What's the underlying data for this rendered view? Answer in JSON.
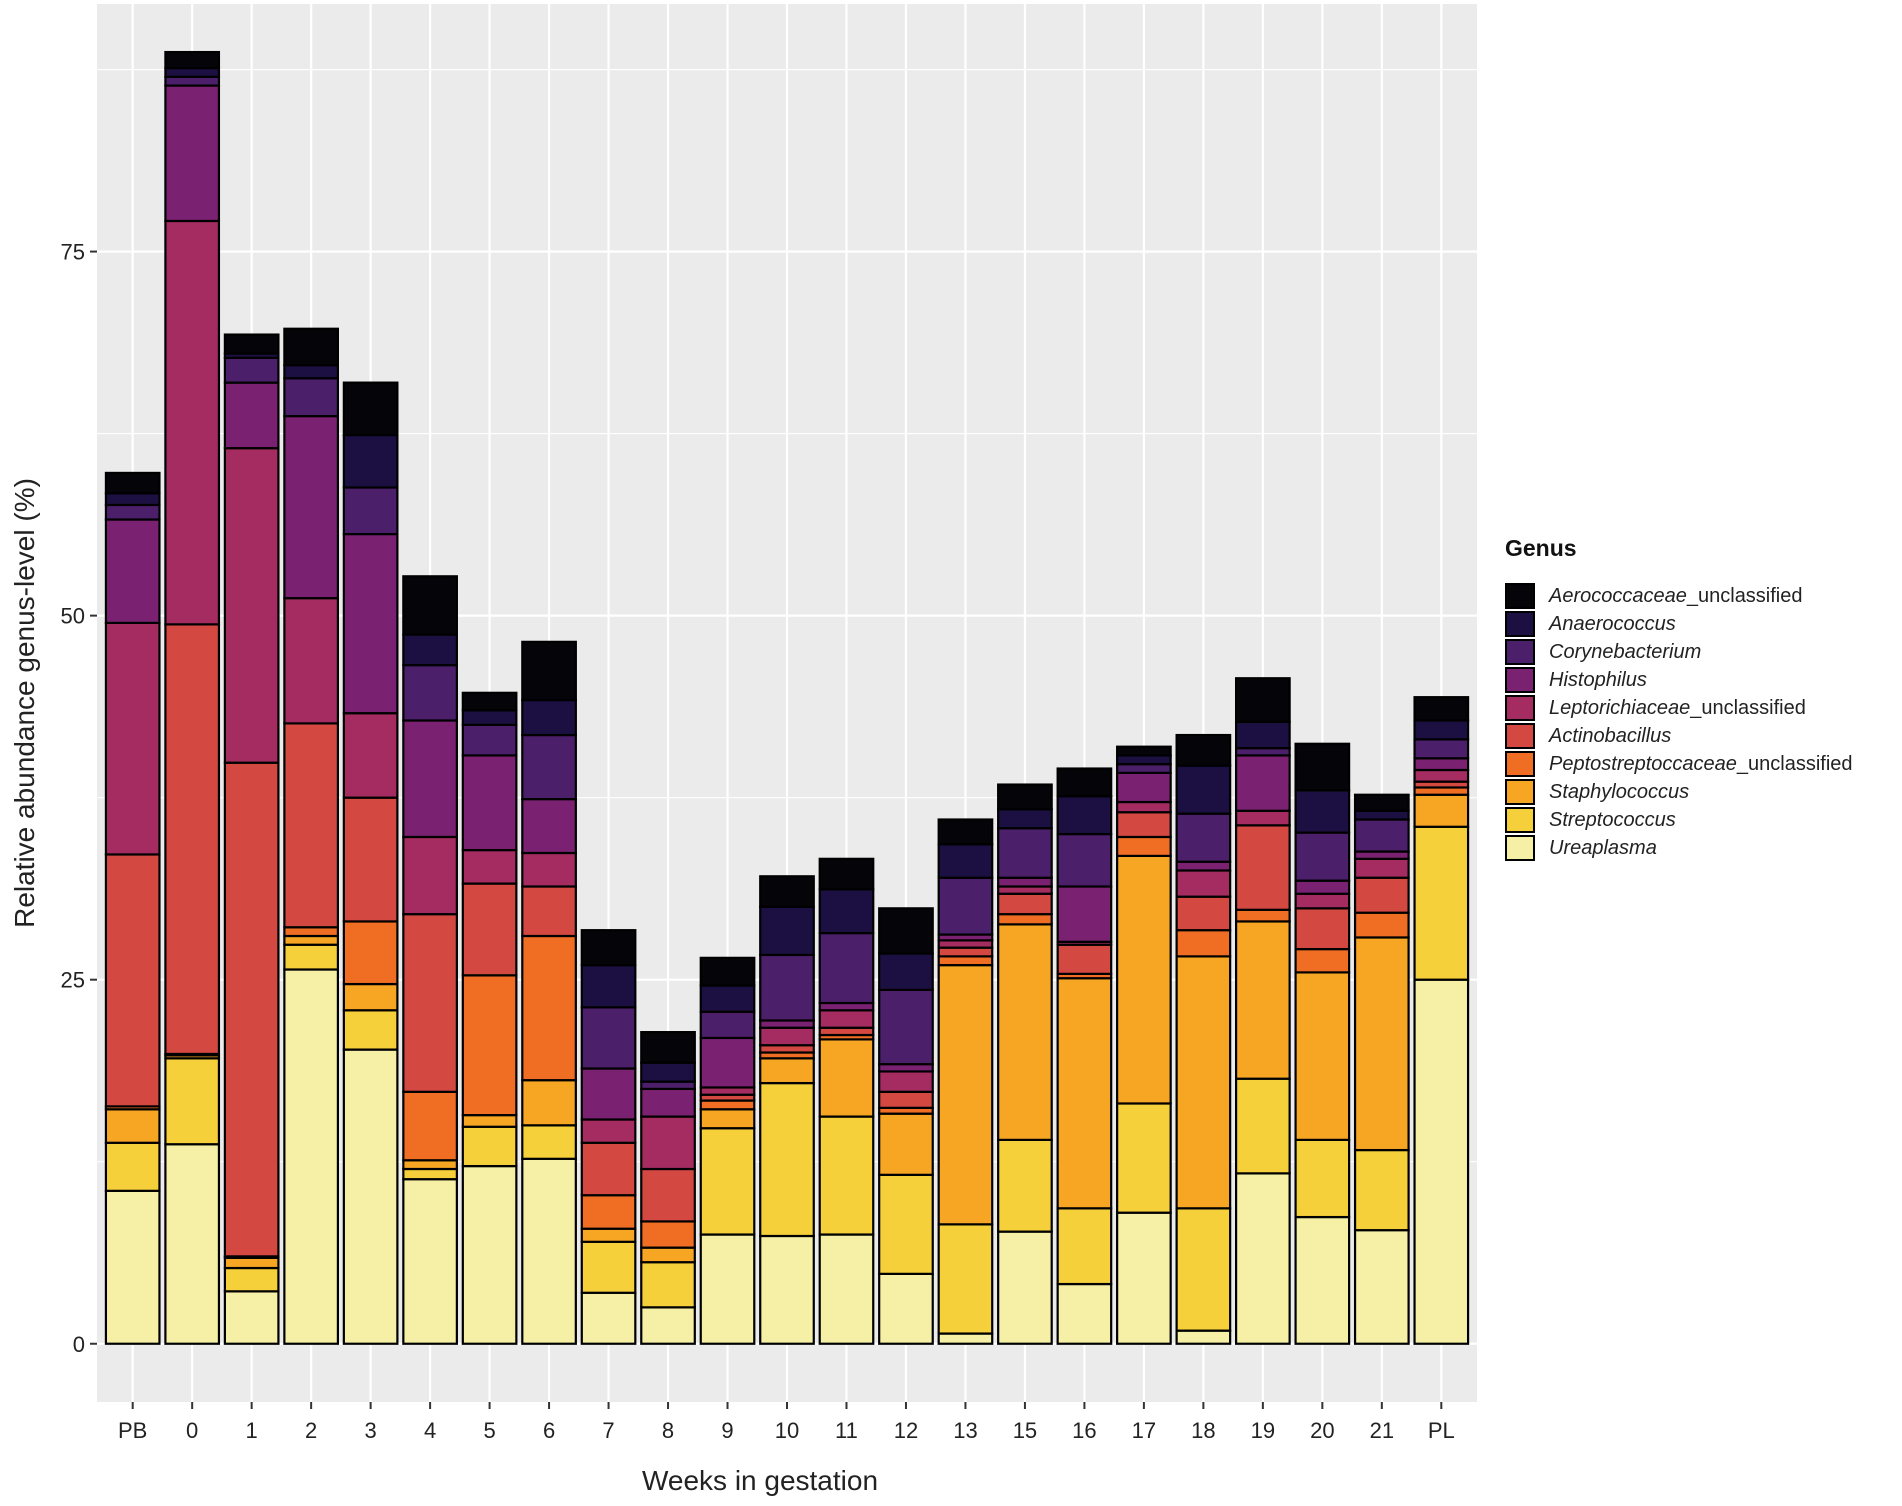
{
  "chart_data": {
    "type": "bar",
    "stacked": true,
    "xlabel": "Weeks in gestation",
    "ylabel": "Relative abundance genus-level (%)",
    "ylim": [
      -4,
      92
    ],
    "yticks": [
      "0",
      "25",
      "50",
      "75"
    ],
    "grid": true,
    "legend_title": "Genus",
    "legend_position": "right",
    "categories": [
      "PB",
      "0",
      "1",
      "2",
      "3",
      "4",
      "5",
      "6",
      "7",
      "8",
      "9",
      "10",
      "11",
      "12",
      "13",
      "15",
      "16",
      "17",
      "18",
      "19",
      "20",
      "21",
      "PL"
    ],
    "series": [
      {
        "name": "Ureaplasma",
        "italic": "Ureaplasma",
        "suffix": "",
        "color": "#f5f0a6",
        "values": [
          10.5,
          13.7,
          3.6,
          25.7,
          20.2,
          11.3,
          12.2,
          12.7,
          3.5,
          2.5,
          7.5,
          7.4,
          7.5,
          4.8,
          0.7,
          7.7,
          4.1,
          9.0,
          0.9,
          11.7,
          8.7,
          7.8,
          25.0
        ]
      },
      {
        "name": "Streptococcus",
        "italic": "Streptococcus",
        "suffix": "",
        "color": "#f6d03a",
        "values": [
          3.3,
          5.9,
          1.6,
          1.7,
          2.7,
          0.7,
          2.7,
          2.3,
          3.5,
          3.1,
          7.3,
          10.5,
          8.1,
          6.8,
          7.5,
          6.3,
          5.2,
          7.5,
          8.4,
          6.5,
          5.3,
          5.5,
          10.5
        ]
      },
      {
        "name": "Staphylococcus",
        "italic": "Staphylococcus",
        "suffix": "",
        "color": "#f7a624",
        "values": [
          2.3,
          0.2,
          0.7,
          0.6,
          1.8,
          0.6,
          0.8,
          3.1,
          0.9,
          1.0,
          1.3,
          1.7,
          5.3,
          4.2,
          17.8,
          14.8,
          15.8,
          17.0,
          17.3,
          10.8,
          11.5,
          14.6,
          2.2
        ]
      },
      {
        "name": "Peptostreptoccaceae_unclassified",
        "italic": "Peptostreptoccaceae",
        "suffix": "_unclassified",
        "color": "#ef6e24",
        "values": [
          0.2,
          0.1,
          0.1,
          0.6,
          4.3,
          4.7,
          9.6,
          9.9,
          2.3,
          1.8,
          0.6,
          0.4,
          0.3,
          0.4,
          0.6,
          0.7,
          0.3,
          1.3,
          1.8,
          0.8,
          1.6,
          1.7,
          0.5
        ]
      },
      {
        "name": "Actinobacillus",
        "italic": "Actinobacillus",
        "suffix": "",
        "color": "#d44842",
        "values": [
          17.3,
          29.5,
          33.9,
          14.0,
          8.5,
          12.2,
          6.3,
          3.4,
          3.6,
          3.6,
          0.4,
          0.5,
          0.5,
          1.1,
          0.6,
          1.4,
          2.0,
          1.7,
          2.3,
          5.8,
          2.8,
          2.4,
          0.4
        ]
      },
      {
        "name": "Leptorichiaceae_unclassified",
        "italic": "Leptorichiaceae",
        "suffix": "_unclassified",
        "color": "#a52c60",
        "values": [
          15.9,
          27.7,
          21.6,
          8.6,
          5.8,
          5.3,
          2.3,
          2.3,
          1.6,
          3.6,
          0.5,
          1.2,
          1.2,
          1.4,
          0.5,
          0.5,
          0.2,
          0.7,
          1.8,
          1.0,
          1.0,
          1.3,
          0.8
        ]
      },
      {
        "name": "Histophilus",
        "italic": "Histophilus",
        "suffix": "",
        "color": "#7a2271",
        "values": [
          7.1,
          9.3,
          4.5,
          12.5,
          12.3,
          8.0,
          6.5,
          3.7,
          3.5,
          1.9,
          3.4,
          0.5,
          0.5,
          0.5,
          0.4,
          0.6,
          3.8,
          2.0,
          0.6,
          3.8,
          0.9,
          0.5,
          0.8
        ]
      },
      {
        "name": "Corynebacterium",
        "italic": "Corynebacterium",
        "suffix": "",
        "color": "#4c1f6b",
        "values": [
          1.0,
          0.6,
          1.7,
          2.6,
          3.2,
          3.8,
          2.1,
          4.4,
          4.2,
          0.5,
          1.8,
          4.5,
          4.8,
          5.1,
          3.9,
          3.4,
          3.6,
          0.6,
          3.3,
          0.5,
          3.3,
          2.2,
          1.3
        ]
      },
      {
        "name": "Anaerococcus",
        "italic": "Anaerococcus",
        "suffix": "",
        "color": "#1c1042",
        "values": [
          0.8,
          0.6,
          0.3,
          0.9,
          3.6,
          2.1,
          1.0,
          2.4,
          2.9,
          1.3,
          1.8,
          3.3,
          3.0,
          2.5,
          2.3,
          1.3,
          2.6,
          0.6,
          3.3,
          1.8,
          2.9,
          0.6,
          1.3
        ]
      },
      {
        "name": "Aerococcaceae_unclassified",
        "italic": "Aerococcaceae",
        "suffix": "_unclassified",
        "color": "#050408",
        "values": [
          1.4,
          1.1,
          1.3,
          2.5,
          3.6,
          4.0,
          1.2,
          4.0,
          2.4,
          2.1,
          1.9,
          2.1,
          2.1,
          3.1,
          1.7,
          1.7,
          1.9,
          0.6,
          2.1,
          3.0,
          3.2,
          1.1,
          1.6
        ]
      }
    ]
  }
}
